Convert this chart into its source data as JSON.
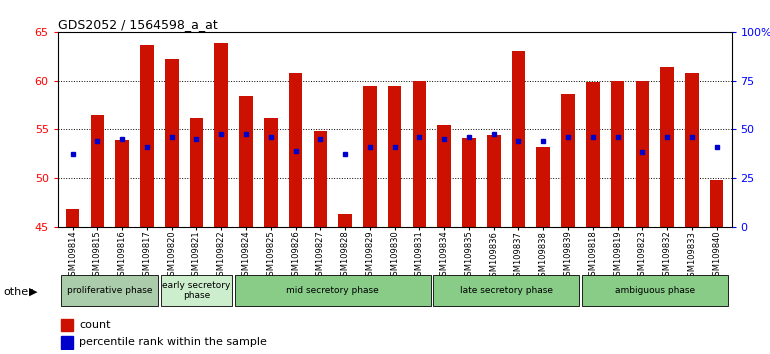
{
  "title": "GDS2052 / 1564598_a_at",
  "samples": [
    "GSM109814",
    "GSM109815",
    "GSM109816",
    "GSM109817",
    "GSM109820",
    "GSM109821",
    "GSM109822",
    "GSM109824",
    "GSM109825",
    "GSM109826",
    "GSM109827",
    "GSM109828",
    "GSM109829",
    "GSM109830",
    "GSM109831",
    "GSM109834",
    "GSM109835",
    "GSM109836",
    "GSM109837",
    "GSM109838",
    "GSM109839",
    "GSM109818",
    "GSM109819",
    "GSM109823",
    "GSM109832",
    "GSM109833",
    "GSM109840"
  ],
  "count_values": [
    46.8,
    56.5,
    53.9,
    63.6,
    62.2,
    56.2,
    63.9,
    58.4,
    56.2,
    60.8,
    54.8,
    46.3,
    59.4,
    59.4,
    60.0,
    55.4,
    54.1,
    54.4,
    63.0,
    53.2,
    58.6,
    59.8,
    60.0,
    60.0,
    61.4,
    60.8,
    49.8
  ],
  "percentile_values": [
    52.5,
    53.8,
    54.0,
    53.2,
    54.2,
    54.0,
    54.5,
    54.5,
    54.2,
    52.8,
    54.0,
    52.5,
    53.2,
    53.2,
    54.2,
    54.0,
    54.2,
    54.5,
    53.8,
    53.8,
    54.2,
    54.2,
    54.2,
    52.7,
    54.2,
    54.2,
    53.2
  ],
  "y_min": 45,
  "y_max": 65,
  "bar_color": "#cc1100",
  "dot_color": "#0000cc",
  "groups": [
    {
      "label": "proliferative phase",
      "start": 0,
      "end": 3,
      "color": "#aaddaa"
    },
    {
      "label": "early secretory\nphase",
      "start": 4,
      "end": 6,
      "color": "#cceecc"
    },
    {
      "label": "mid secretory phase",
      "start": 7,
      "end": 14,
      "color": "#88cc88"
    },
    {
      "label": "late secretory phase",
      "start": 15,
      "end": 20,
      "color": "#88cc88"
    },
    {
      "label": "ambiguous phase",
      "start": 21,
      "end": 26,
      "color": "#88cc88"
    }
  ],
  "group_colors": {
    "proliferative phase": "#bbddaa",
    "early secretory\nphase": "#ddeedd",
    "mid secretory phase": "#99cc99",
    "late secretory phase": "#99cc99",
    "ambiguous phase": "#99cc99"
  }
}
